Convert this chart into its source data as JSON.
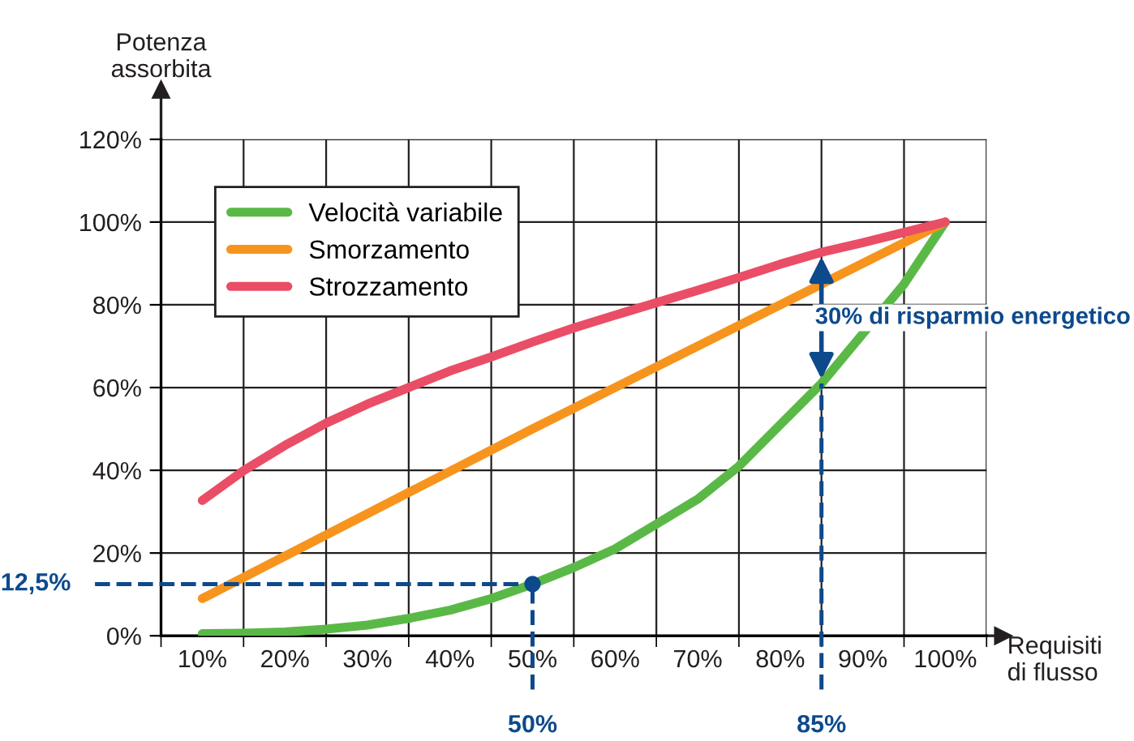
{
  "chart_data": {
    "type": "line",
    "ylabel": "Potenza\nassorbita",
    "xlabel": "Requisiti\ndi flusso",
    "xlim": [
      5,
      105
    ],
    "ylim": [
      0,
      120
    ],
    "xticks": [
      {
        "value": 5,
        "label": null
      },
      {
        "value": 10,
        "label": "10%"
      },
      {
        "value": 15,
        "label": null
      },
      {
        "value": 20,
        "label": "20%"
      },
      {
        "value": 25,
        "label": null
      },
      {
        "value": 30,
        "label": "30%"
      },
      {
        "value": 35,
        "label": null
      },
      {
        "value": 40,
        "label": "40%"
      },
      {
        "value": 45,
        "label": null
      },
      {
        "value": 50,
        "label": "50%"
      },
      {
        "value": 55,
        "label": null
      },
      {
        "value": 60,
        "label": "60%"
      },
      {
        "value": 65,
        "label": null
      },
      {
        "value": 70,
        "label": "70%"
      },
      {
        "value": 75,
        "label": null
      },
      {
        "value": 80,
        "label": "80%"
      },
      {
        "value": 85,
        "label": null
      },
      {
        "value": 90,
        "label": "90%"
      },
      {
        "value": 95,
        "label": null
      },
      {
        "value": 100,
        "label": "100%"
      },
      {
        "value": 105,
        "label": null
      }
    ],
    "yticks": [
      {
        "value": 0,
        "label": "0%"
      },
      {
        "value": 20,
        "label": "20%"
      },
      {
        "value": 40,
        "label": "40%"
      },
      {
        "value": 60,
        "label": "60%"
      },
      {
        "value": 80,
        "label": "80%"
      },
      {
        "value": 100,
        "label": "100%"
      },
      {
        "value": 120,
        "label": "120%"
      }
    ],
    "grid": true,
    "legend": "top left",
    "marker": "none",
    "line_style": "solid",
    "series": [
      {
        "name": "Velocità variabile",
        "color": "#5ab946",
        "x": [
          10,
          15,
          20,
          25,
          30,
          35,
          40,
          45,
          50,
          55,
          60,
          65,
          70,
          75,
          80,
          85,
          90,
          95,
          100
        ],
        "values": [
          0.5,
          0.6,
          0.9,
          1.6,
          2.6,
          4.2,
          6.2,
          9,
          12.5,
          16.5,
          21,
          27,
          33,
          41,
          51,
          61,
          73,
          85,
          100
        ]
      },
      {
        "name": "Smorzamento",
        "color": "#f7941d",
        "x": [
          10,
          50,
          85,
          100
        ],
        "values": [
          9,
          50,
          85,
          100
        ]
      },
      {
        "name": "Strozzamento",
        "color": "#e94e66",
        "x": [
          10,
          15,
          20,
          25,
          30,
          35,
          40,
          45,
          50,
          55,
          60,
          65,
          70,
          75,
          80,
          85,
          90,
          95,
          100
        ],
        "values": [
          32.7,
          39.9,
          46,
          51.4,
          56,
          60,
          64,
          67.4,
          71,
          74.4,
          77.5,
          80.5,
          83.5,
          86.6,
          89.8,
          92.7,
          95,
          97.5,
          100
        ]
      },
      {
        "type": "scatter",
        "marker": "circle",
        "color": "#0d4a8c",
        "x": [
          50
        ],
        "values": [
          12.5
        ]
      }
    ],
    "ref_lines": [
      {
        "axis": "y",
        "value": 12.5,
        "label": "12,5%",
        "color": "#0d4a8c",
        "line_style": "dashed"
      },
      {
        "axis": "x",
        "value": 50,
        "label": "50%",
        "color": "#0d4a8c",
        "line_style": "dashed"
      },
      {
        "axis": "x",
        "value": 85,
        "label": "85%",
        "color": "#0d4a8c",
        "line_style": "dashed"
      }
    ],
    "annotations": [
      "30% di risparmio energetico"
    ]
  }
}
